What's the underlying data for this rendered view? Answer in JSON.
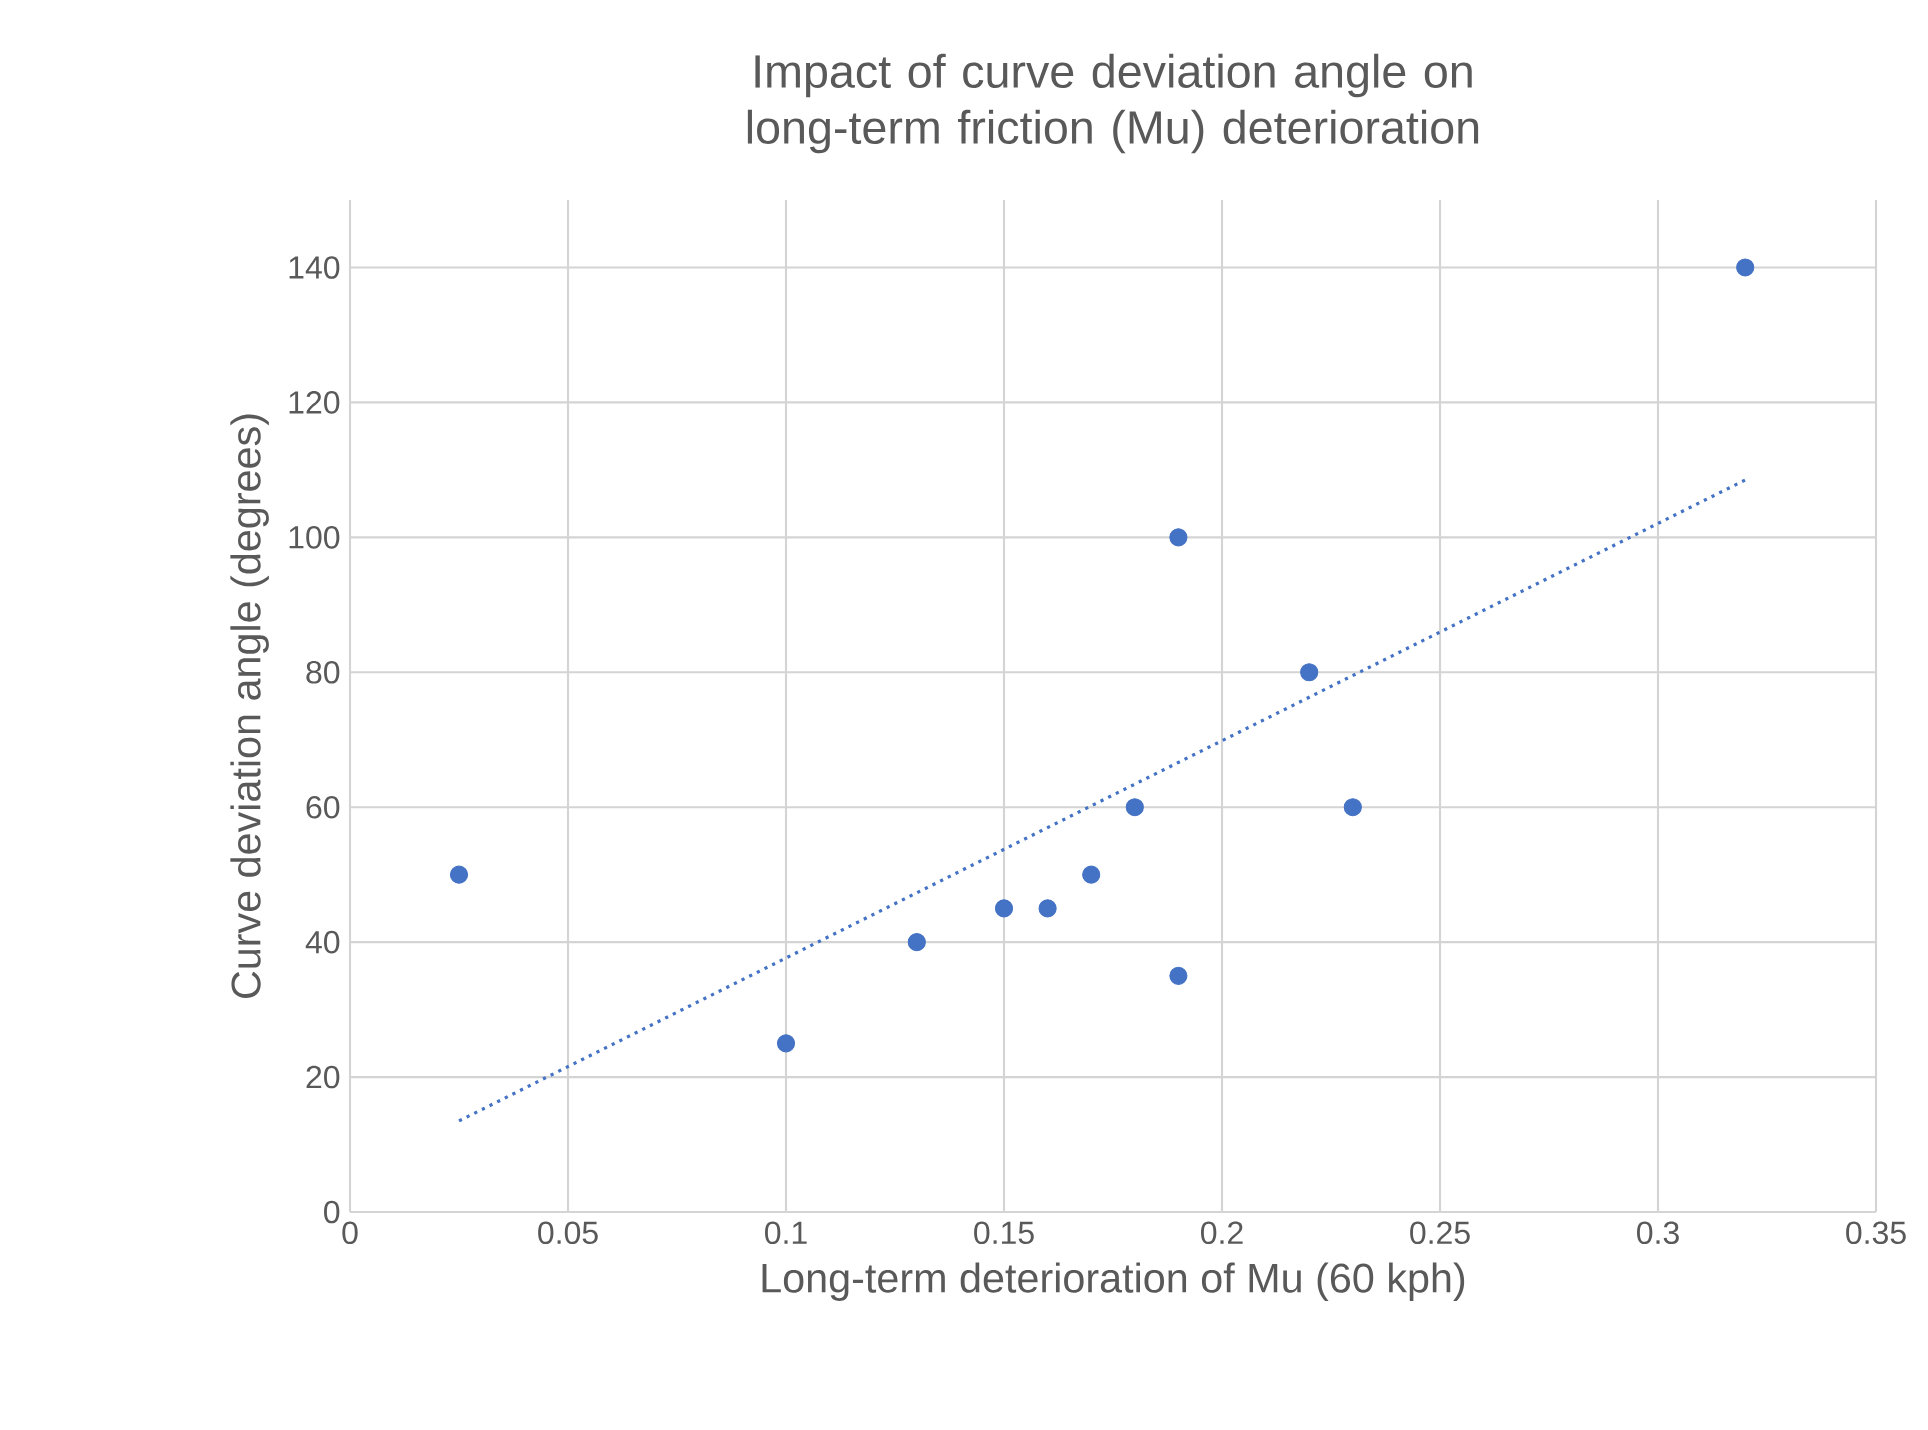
{
  "chart_data": {
    "type": "scatter",
    "title": "Impact of curve deviation angle on long-term friction (Mu) deterioration",
    "xlabel": "Long-term deterioration of Mu (60 kph)",
    "ylabel": "Curve deviation angle (degrees)",
    "xlim": [
      0,
      0.35
    ],
    "xticks": [
      0,
      0.05,
      0.1,
      0.15,
      0.2,
      0.25,
      0.3,
      0.35
    ],
    "ylim": [
      0,
      150
    ],
    "yticks": [
      0,
      20,
      40,
      60,
      80,
      100,
      120,
      140
    ],
    "grid": true,
    "marker": "circle",
    "series": [
      {
        "color": "#4472c4",
        "x": [
          0.025,
          0.1,
          0.13,
          0.15,
          0.16,
          0.17,
          0.18,
          0.19,
          0.19,
          0.22,
          0.23,
          0.32
        ],
        "values": [
          50,
          25,
          40,
          45,
          45,
          50,
          60,
          100,
          35,
          80,
          60,
          140
        ]
      },
      {
        "type": "line",
        "color": "#4472c4",
        "x": [
          0.025,
          0.32
        ],
        "values": [
          13.5,
          108.5
        ],
        "line_style": "dotted",
        "marker": "none"
      }
    ]
  }
}
